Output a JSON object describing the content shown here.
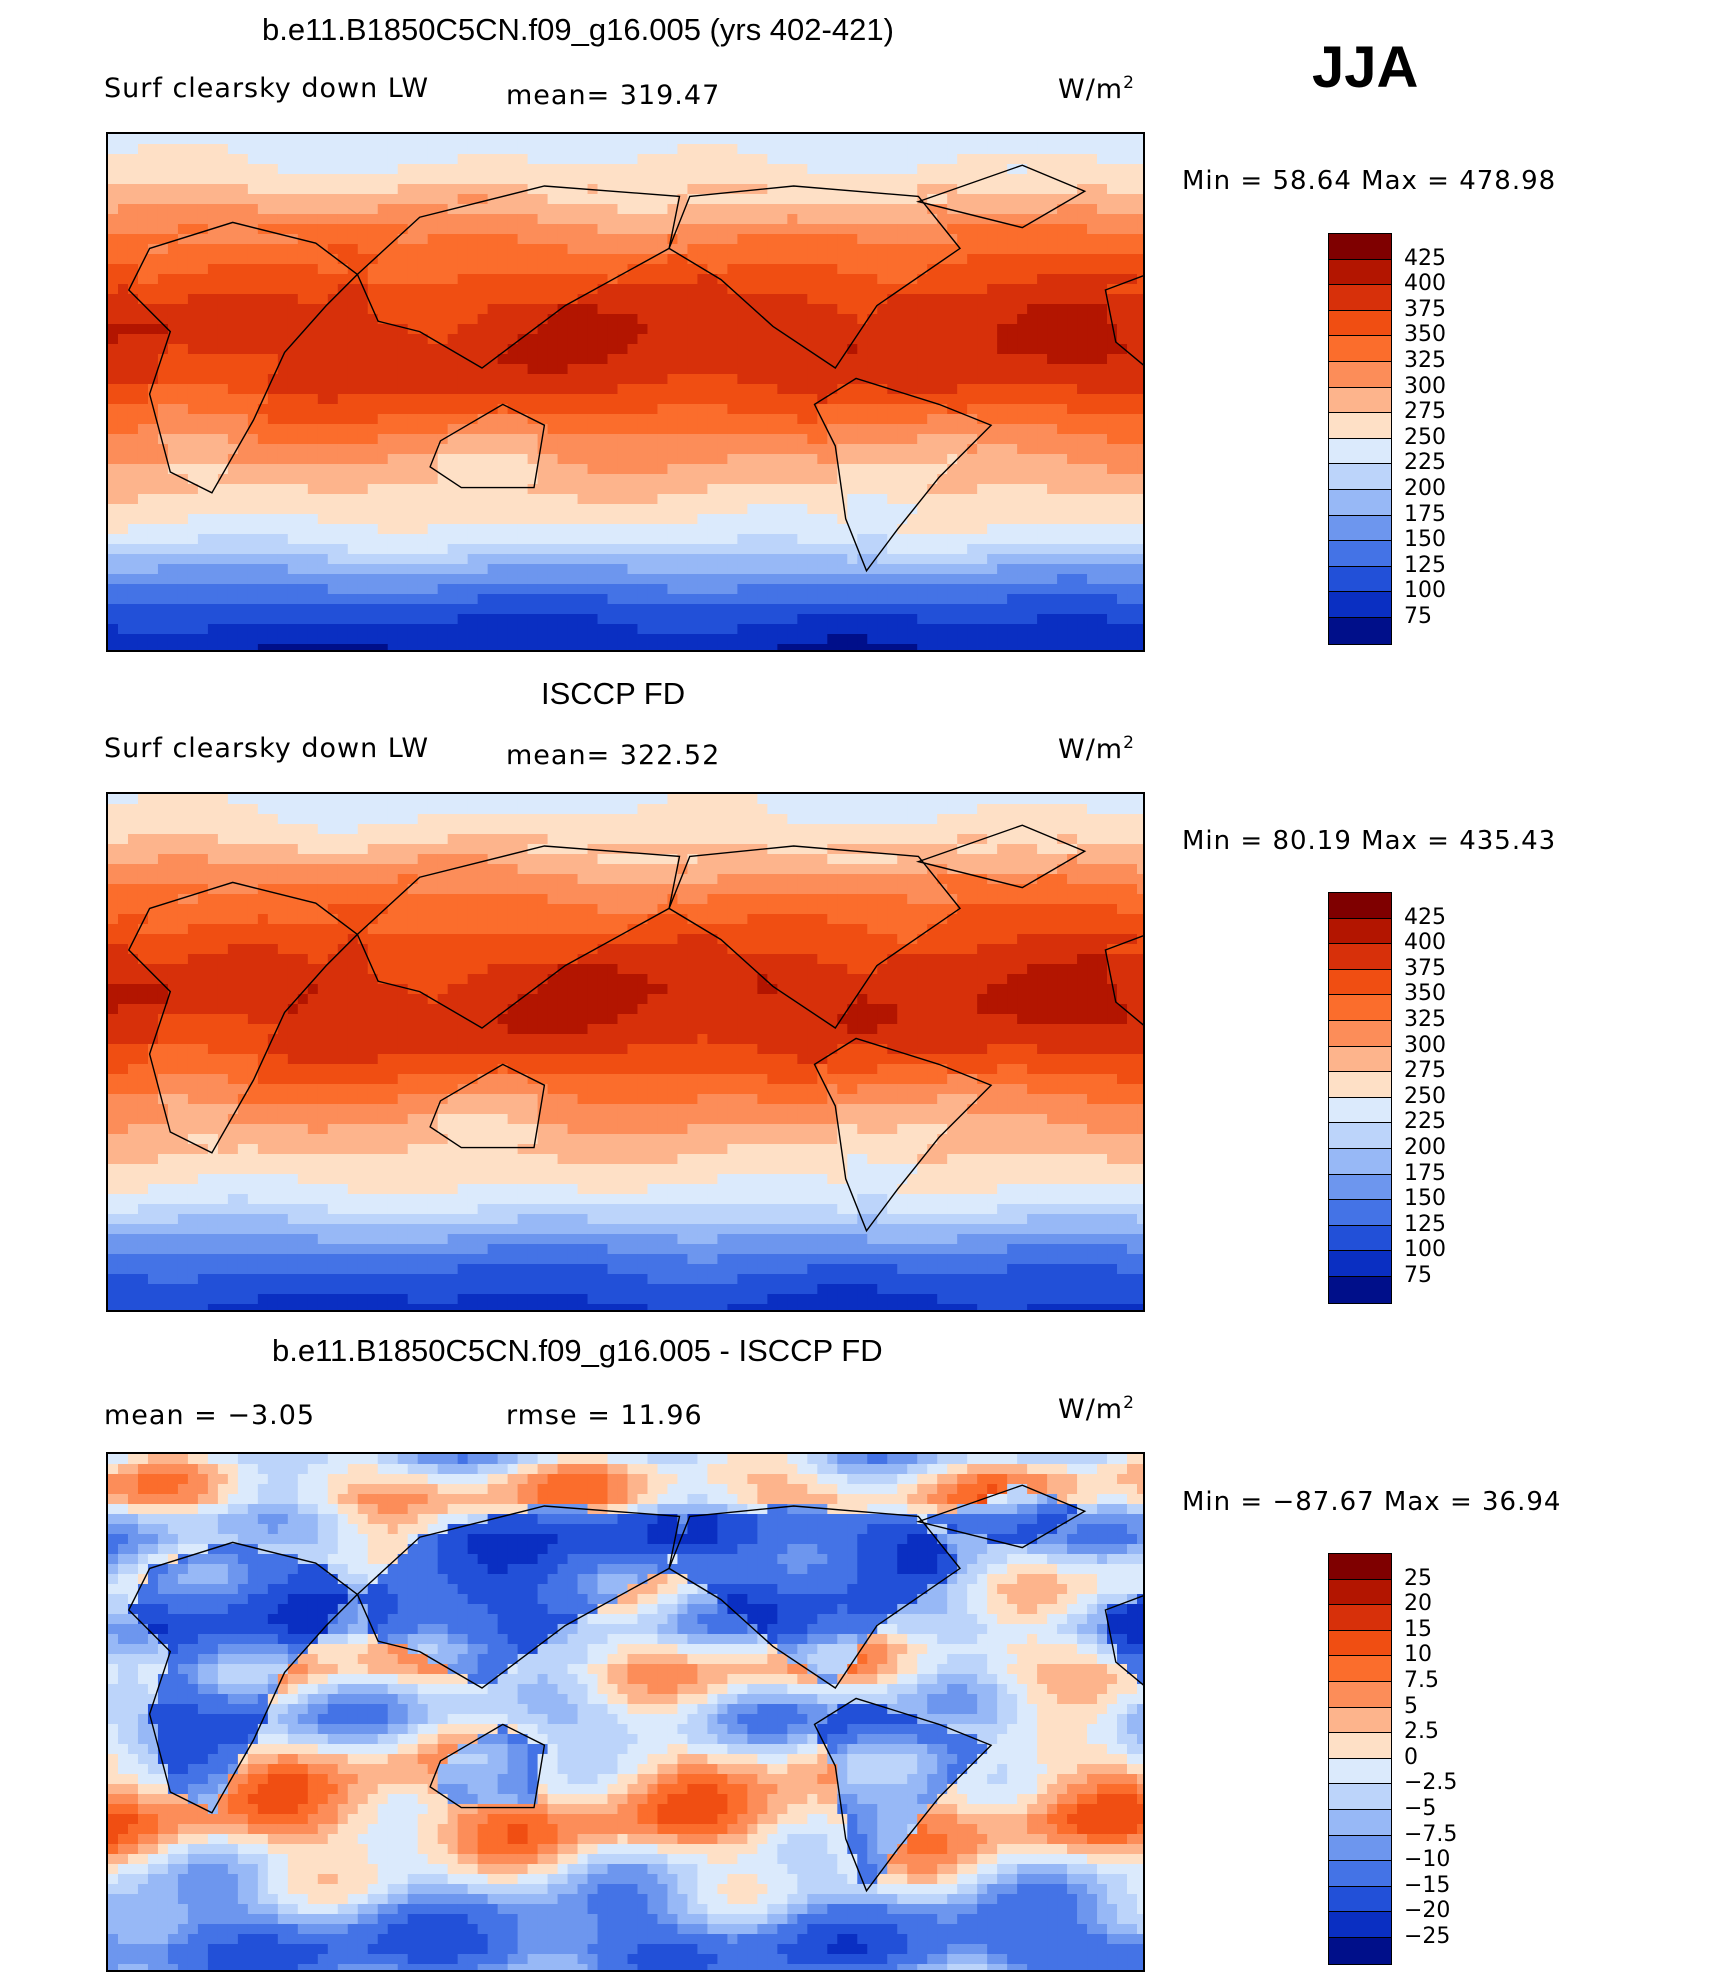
{
  "season": "JJA",
  "palettes": {
    "abs": [
      "#7f0000",
      "#b31500",
      "#d7300a",
      "#f04e12",
      "#fb6d2c",
      "#fc8d59",
      "#fdb48c",
      "#fee0c6",
      "#dbeafc",
      "#bcd4fa",
      "#97b8f6",
      "#6d96ee",
      "#4473e6",
      "#2250d8",
      "#0a2fc2",
      "#000f8a"
    ],
    "diff": [
      "#7f0000",
      "#b31500",
      "#d7300a",
      "#f04e12",
      "#fb6d2c",
      "#fc8d59",
      "#fdb48c",
      "#fee0c6",
      "#dbeafc",
      "#bcd4fa",
      "#97b8f6",
      "#6d96ee",
      "#4473e6",
      "#2250d8",
      "#0a2fc2",
      "#000f8a"
    ]
  },
  "panel1": {
    "title": "b.e11.B1850C5CN.f09_g16.005 (yrs 402-421)",
    "variable": "Surf clearsky down LW",
    "mean_label": "mean= 319.47",
    "units_base": "W/m",
    "units_exp": "2",
    "minmax": "Min =   58.64 Max =  478.98"
  },
  "panel2": {
    "title": "ISCCP FD",
    "variable": "Surf clearsky down LW",
    "mean_label": "mean= 322.52",
    "units_base": "W/m",
    "units_exp": "2",
    "minmax": "Min =   80.19 Max =  435.43"
  },
  "panel3": {
    "title": "b.e11.B1850C5CN.f09_g16.005 - ISCCP FD",
    "mean_label": "mean =   −3.05",
    "rmse_label": "rmse =   11.96",
    "units_base": "W/m",
    "units_exp": "2",
    "minmax": "Min = −87.67 Max =   36.94"
  },
  "chart_data": [
    {
      "type": "heatmap",
      "title": "b.e11.B1850C5CN.f09_g16.005 (yrs 402-421)",
      "variable": "Surf clearsky down LW",
      "units": "W/m2",
      "mean": 319.47,
      "min": 58.64,
      "max": 478.98,
      "colorbar_levels": [
        "425",
        "400",
        "375",
        "350",
        "325",
        "300",
        "275",
        "250",
        "225",
        "200",
        "175",
        "150",
        "125",
        "100",
        "75"
      ],
      "zonal_profile_90N_to_90S": [
        235,
        245,
        262,
        290,
        318,
        345,
        360,
        380,
        395,
        400,
        398,
        390,
        372,
        348,
        322,
        300,
        282,
        265,
        250,
        225,
        180,
        145,
        110,
        90,
        75
      ]
    },
    {
      "type": "heatmap",
      "title": "ISCCP FD",
      "variable": "Surf clearsky down LW",
      "units": "W/m2",
      "mean": 322.52,
      "min": 80.19,
      "max": 435.43,
      "colorbar_levels": [
        "425",
        "400",
        "375",
        "350",
        "325",
        "300",
        "275",
        "250",
        "225",
        "200",
        "175",
        "150",
        "125",
        "100",
        "75"
      ],
      "zonal_profile_90N_to_90S": [
        240,
        250,
        268,
        298,
        325,
        350,
        365,
        382,
        396,
        402,
        400,
        392,
        375,
        352,
        326,
        304,
        285,
        268,
        252,
        230,
        190,
        155,
        125,
        105,
        90
      ]
    },
    {
      "type": "heatmap",
      "title": "b.e11.B1850C5CN.f09_g16.005 - ISCCP FD",
      "units": "W/m2",
      "mean": -3.05,
      "rmse": 11.96,
      "min": -87.67,
      "max": 36.94,
      "colorbar_levels": [
        "25",
        "20",
        "15",
        "10",
        "7.5",
        "5",
        "2.5",
        "0",
        "−2.5",
        "−5",
        "−7.5",
        "−10",
        "−15",
        "−20",
        "−25"
      ],
      "zonal_profile_90N_to_90S": [
        -5,
        2,
        4,
        -3,
        -6,
        -2,
        -1,
        -4,
        -5,
        1,
        3,
        -2,
        -6,
        -3,
        2,
        4,
        5,
        6,
        3,
        -1,
        -4,
        -8,
        -12,
        -15,
        -10
      ]
    }
  ]
}
